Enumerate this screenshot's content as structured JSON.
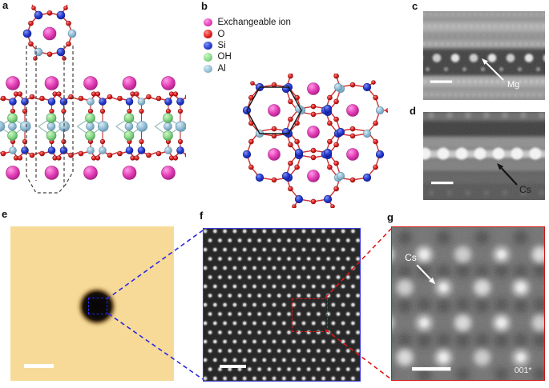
{
  "figure": {
    "panel_labels": {
      "a": "a",
      "b": "b",
      "c": "c",
      "d": "d",
      "e": "e",
      "f": "f",
      "g": "g"
    },
    "legend": {
      "items": [
        {
          "key": "ion",
          "label": "Exchangeable ion"
        },
        {
          "key": "o",
          "label": "O"
        },
        {
          "key": "si",
          "label": "Si"
        },
        {
          "key": "oh",
          "label": "OH"
        },
        {
          "key": "al",
          "label": "Al"
        }
      ]
    },
    "annotations": {
      "panel_c": "Mg",
      "panel_d": "Cs",
      "panel_g": "Cs",
      "panel_g_zone_axis": "001*"
    },
    "colors": {
      "atoms": {
        "ion": {
          "light": "#ff9ce8",
          "base": "#e23cb4",
          "dark": "#a01b7f"
        },
        "o": {
          "light": "#ff8a8a",
          "base": "#d91a1a",
          "dark": "#8e0f0f"
        },
        "si": {
          "light": "#8094f0",
          "base": "#2438cf",
          "dark": "#101e8e"
        },
        "oh": {
          "light": "#d2f5c8",
          "base": "#86d886",
          "dark": "#4f9b57"
        },
        "al": {
          "light": "#d8ecf5",
          "base": "#92bcd2",
          "dark": "#5e8fae"
        }
      },
      "bond_o": "#d03030",
      "bond_octa": "#9bc0bc",
      "unit_cell": "#1a1a1a",
      "dashed_region": "#3f3f3f",
      "panel_e_bg": "#f7da97",
      "zoom_blue": "#2a2ae0",
      "zoom_red": "#e01818",
      "f_border": "#3b3bd4",
      "g_border": "#d41616"
    }
  }
}
